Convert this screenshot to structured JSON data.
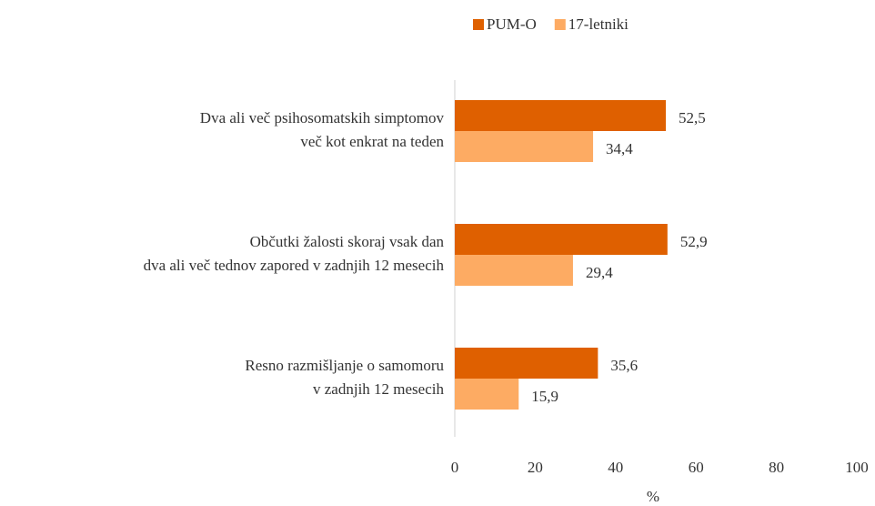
{
  "chart_data": {
    "type": "hbar",
    "categories": [
      [
        "Dva ali več psihosomatskih simptomov",
        "več kot enkrat na teden"
      ],
      [
        "Občutki žalosti skoraj vsak dan",
        "dva ali več tednov zapored v zadnjih 12 mesecih"
      ],
      [
        "Resno razmišljanje o samomoru",
        "v zadnjih 12 mesecih"
      ]
    ],
    "series": [
      {
        "name": "PUM-O",
        "color": "#df6000",
        "values": [
          52.5,
          52.9,
          35.6
        ],
        "value_labels": [
          "52,5",
          "52,9",
          "35,6"
        ]
      },
      {
        "name": "17-letniki",
        "color": "#fdab63",
        "values": [
          34.4,
          29.4,
          15.9
        ],
        "value_labels": [
          "34,4",
          "29,4",
          "15,9"
        ]
      }
    ],
    "xlim": [
      0,
      100
    ],
    "xticks": [
      0,
      20,
      40,
      60,
      80,
      100
    ],
    "xlabel": "%",
    "legend": "top"
  }
}
